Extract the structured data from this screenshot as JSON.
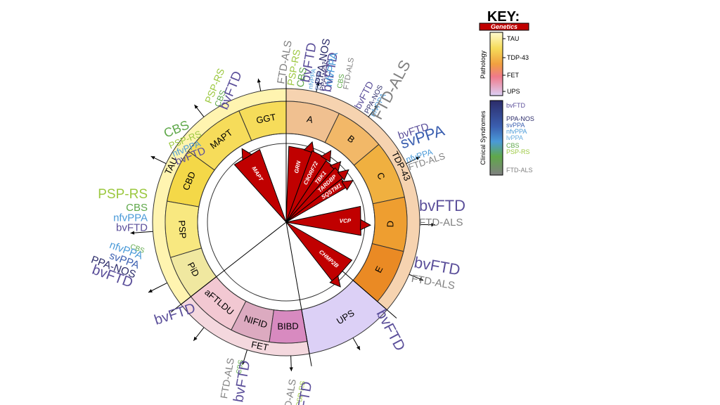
{
  "key": {
    "title": "KEY:",
    "genetics_label": "Genetics",
    "pathology_title": "Pathology",
    "pathology_items": [
      "TAU",
      "TDP-43",
      "FET",
      "UPS"
    ],
    "syndromes_title": "Clinical Syndromes",
    "syndrome_items": [
      "bvFTD",
      "PPA-NOS",
      "svPPA",
      "nfvPPA",
      "lvPPA",
      "CBS",
      "PSP-RS",
      "FTD-ALS"
    ]
  },
  "colors": {
    "genetics": "#c00000",
    "tau_light": "#fff4b0",
    "tau_segment": "#f6dc5a",
    "tdp_light": "#f6d3b0",
    "tdp_segment": "#eea64a",
    "fet_light": "#f4d8de",
    "fet_segment": "#d9a6c0",
    "ups": "#dcd0f6",
    "bvftd": "#5b4f9a",
    "ppa_nos": "#2c2c6a",
    "svppa": "#3b5fb0",
    "nfvppa": "#4a9ad8",
    "lvppa": "#6aaee0",
    "cbs": "#5fa84a",
    "psp_rs": "#9cc840",
    "ftd_als": "#808080"
  },
  "pathology_groups": {
    "tau": "TAU",
    "tdp43": "TDP-43",
    "fet": "FET",
    "ups": "UPS"
  },
  "segments": {
    "ggt": "GGT",
    "mapt": "MAPT",
    "cbd": "CBD",
    "psp": "PSP",
    "pid": "PiD",
    "aftldu": "aFTLDU",
    "nifid": "NIFID",
    "bibd": "BIBD",
    "ups": "UPS",
    "a": "A",
    "b": "B",
    "c": "C",
    "d": "D",
    "e": "E"
  },
  "genes": {
    "mapt": "MAPT",
    "grn": "GRN",
    "c9orf72": "C9ORF72",
    "tbk1": "TBK1",
    "tardbp": "TARDBP",
    "sqstm1": "SQSTM1",
    "vcp": "VCP",
    "chmp2b": "CHMP2B"
  },
  "syndromes": {
    "ggt": [
      "FTD-ALS",
      "PSP-RS",
      "CBS",
      "nfvPPA",
      "svPPA",
      "PPA-NOS",
      "bvFTD"
    ],
    "mapt": [
      "PSP-RS",
      "CBS",
      "bvFTD"
    ],
    "cbd": [
      "CBS",
      "PSP-RS",
      "nfvPPA",
      "bvFTD"
    ],
    "psp": [
      "PSP-RS",
      "CBS",
      "nfvPPA",
      "bvFTD"
    ],
    "pid": [
      "CBS",
      "nfvPPA",
      "svPPA",
      "PPA-NOS",
      "bvFTD"
    ],
    "aftldu": [
      "bvFTD"
    ],
    "nifid": [
      "FTD-ALS",
      "CBS",
      "bvFTD"
    ],
    "bibd": [
      "FTD-ALS",
      "PSP-RS",
      "bvFTD"
    ],
    "ups": [
      "bvFTD"
    ],
    "a": [
      "bvFTD",
      "PPA-NOS",
      "nfvPPA",
      "CBS",
      "FTD-ALS"
    ],
    "b": [
      "bvFTD",
      "PPA-NOS",
      "nfvPPA",
      "FTD-ALS"
    ],
    "c": [
      "bvFTD",
      "svPPA",
      "nfvPPA",
      "FTD-ALS"
    ],
    "d": [
      "bvFTD",
      "FTD-ALS"
    ],
    "e": [
      "bvFTD",
      "FTD-ALS"
    ]
  }
}
